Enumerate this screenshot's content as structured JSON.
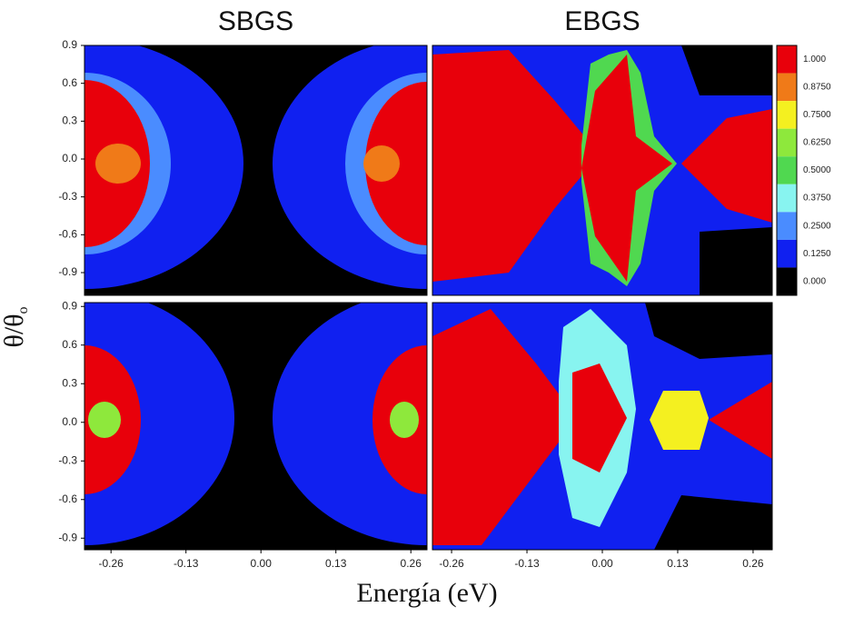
{
  "figure": {
    "y_label": "θ/θ",
    "y_label_sub": "o",
    "x_label": "Energía (eV)"
  },
  "chart_data": [
    {
      "type": "contour",
      "title": "SBGS",
      "xlim": [
        -0.306,
        0.288
      ],
      "ylim": [
        -1.08,
        0.9
      ],
      "yticks": [
        0.9,
        0.6,
        0.3,
        {
          "value": 0,
          "label": "0.0"
        },
        -0.3,
        -0.6,
        -0.9
      ]
    },
    {
      "type": "contour",
      "title": "EBGS",
      "xlim": [
        -0.293,
        0.293
      ],
      "ylim": [
        -1.08,
        0.9
      ]
    },
    {
      "type": "contour",
      "xlim": [
        -0.306,
        0.288
      ],
      "ylim": [
        -0.99,
        0.93
      ],
      "yticks": [
        0.9,
        0.6,
        0.3,
        {
          "value": 0,
          "label": "0.0"
        },
        -0.3,
        -0.6,
        -0.9
      ],
      "xticks": [
        -0.26,
        -0.13,
        {
          "value": 0,
          "label": "0.00"
        },
        0.13,
        0.26
      ]
    },
    {
      "type": "contour",
      "xlim": [
        -0.293,
        0.293
      ],
      "ylim": [
        -0.99,
        0.93
      ],
      "xticks": [
        -0.26,
        -0.13,
        {
          "value": 0,
          "label": "0.00"
        },
        0.13,
        0.26
      ]
    }
  ],
  "colorbar": {
    "levels": [
      {
        "value": 1,
        "label": "1.000"
      },
      {
        "value": 0.875,
        "label": "0.8750"
      },
      {
        "value": 0.75,
        "label": "0.7500"
      },
      {
        "value": 0.625,
        "label": "0.6250"
      },
      {
        "value": 0.5,
        "label": "0.5000"
      },
      {
        "value": 0.375,
        "label": "0.3750"
      },
      {
        "value": 0.25,
        "label": "0.2500"
      },
      {
        "value": 0.125,
        "label": "0.1250"
      },
      {
        "value": 0,
        "label": "0.000"
      }
    ],
    "colors": [
      "#e8000b",
      "#f07a18",
      "#f4f020",
      "#8ee83c",
      "#50d850",
      "#88f4f0",
      "#4a8cff",
      "#1020f0",
      "#000000"
    ]
  }
}
